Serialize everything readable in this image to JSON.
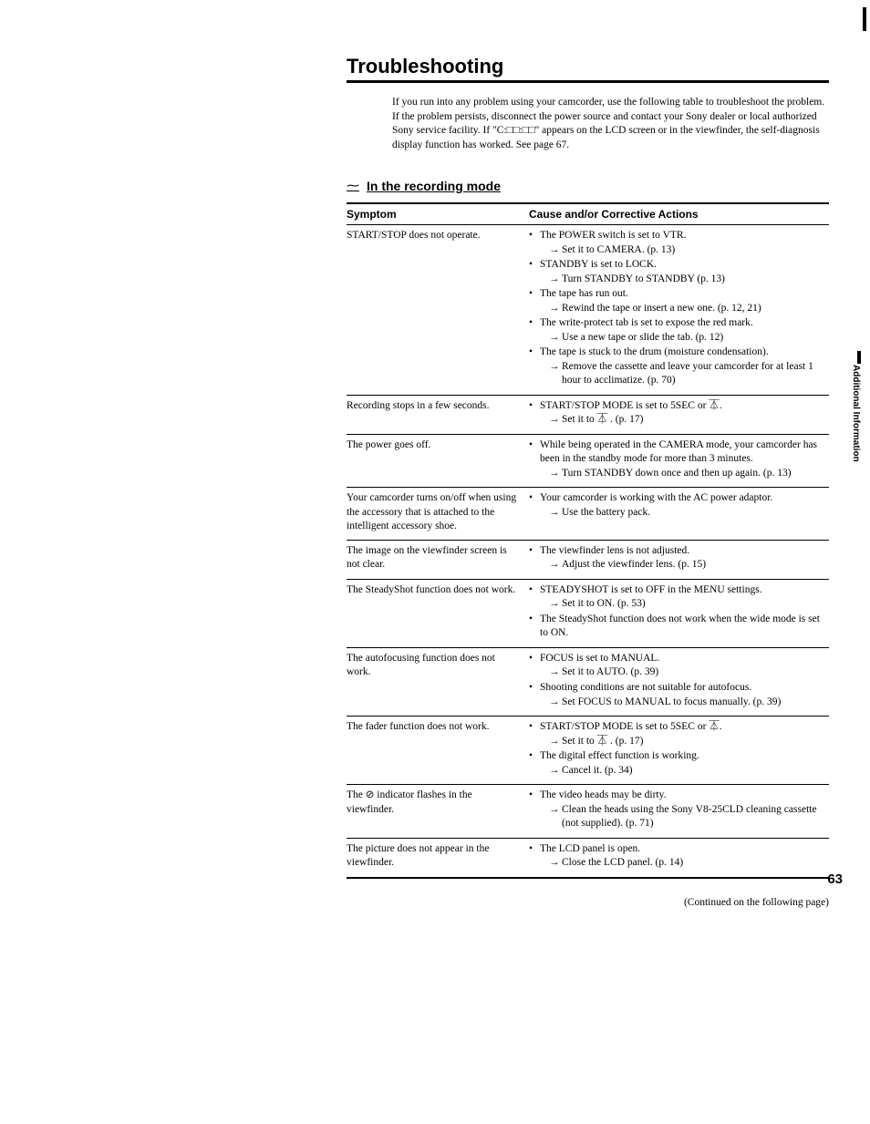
{
  "title": "Troubleshooting",
  "intro": "If you run into any problem using your camcorder, use the following table to troubleshoot the problem. If the problem persists, disconnect the power source and contact your Sony dealer or local authorized Sony service facility. If \"C:□□:□□\" appears on the LCD screen or in the viewfinder, the self-diagnosis display function has worked. See page 67.",
  "section_heading": "In the recording mode",
  "columns": {
    "symptom": "Symptom",
    "action": "Cause and/or Corrective Actions"
  },
  "rows": [
    {
      "symptom": "START/STOP does not operate.",
      "causes": [
        {
          "cause": "The POWER switch is set to VTR.",
          "fix": "Set it to CAMERA. (p. 13)"
        },
        {
          "cause": "STANDBY is set to LOCK.",
          "fix": "Turn STANDBY to STANDBY (p. 13)"
        },
        {
          "cause": "The tape has run out.",
          "fix": "Rewind the tape or insert a new one. (p. 12, 21)"
        },
        {
          "cause": "The write-protect tab is set to expose the red mark.",
          "fix": "Use a new tape or slide the tab. (p. 12)"
        },
        {
          "cause": "The tape is stuck to the drum (moisture condensation).",
          "fix": "Remove the cassette and leave your camcorder for at least 1 hour to acclimatize. (p. 70)"
        }
      ]
    },
    {
      "symptom": "Recording stops in a few seconds.",
      "causes": [
        {
          "cause": "START/STOP MODE is set to 5SEC or ⏄.",
          "fix": "Set it to ⏄ . (p. 17)"
        }
      ]
    },
    {
      "symptom": "The power goes off.",
      "causes": [
        {
          "cause": "While being operated in the CAMERA mode, your camcorder has been in the standby mode for more than 3 minutes.",
          "fix": "Turn STANDBY down once and then up again. (p. 13)"
        }
      ]
    },
    {
      "symptom": "Your camcorder turns on/off when using the accessory that is attached to the intelligent accessory shoe.",
      "causes": [
        {
          "cause": "Your camcorder is working with the AC power adaptor.",
          "fix": "Use the battery pack."
        }
      ]
    },
    {
      "symptom": "The image on the viewfinder screen is not clear.",
      "causes": [
        {
          "cause": "The viewfinder lens is not adjusted.",
          "fix": "Adjust the viewfinder lens. (p. 15)"
        }
      ]
    },
    {
      "symptom": "The SteadyShot function does not work.",
      "causes": [
        {
          "cause": "STEADYSHOT is set to OFF in the MENU settings.",
          "fix": "Set it to ON. (p. 53)"
        },
        {
          "cause": "The SteadyShot function does not work when the wide mode is set to ON."
        }
      ]
    },
    {
      "symptom": "The autofocusing function does not work.",
      "causes": [
        {
          "cause": "FOCUS is set to MANUAL.",
          "fix": "Set it to AUTO. (p. 39)"
        },
        {
          "cause": "Shooting conditions are not suitable for autofocus.",
          "fix": "Set FOCUS to MANUAL to focus manually. (p. 39)"
        }
      ]
    },
    {
      "symptom": "The fader function does not work.",
      "causes": [
        {
          "cause": "START/STOP MODE is set to 5SEC or ⏄.",
          "fix": "Set it to ⏄ . (p. 17)"
        },
        {
          "cause": "The digital effect function is working.",
          "fix": "Cancel it. (p. 34)"
        }
      ]
    },
    {
      "symptom": "The ⊘ indicator flashes in the viewfinder.",
      "causes": [
        {
          "cause": "The video heads may be dirty.",
          "fix": "Clean the heads using the Sony V8-25CLD cleaning cassette (not supplied). (p. 71)"
        }
      ]
    },
    {
      "symptom": "The picture does not appear in the viewfinder.",
      "causes": [
        {
          "cause": "The LCD panel is open.",
          "fix": "Close the LCD panel. (p. 14)"
        }
      ]
    }
  ],
  "continued": "(Continued on the following page)",
  "page_number": "63",
  "side_label": "Additional Information"
}
